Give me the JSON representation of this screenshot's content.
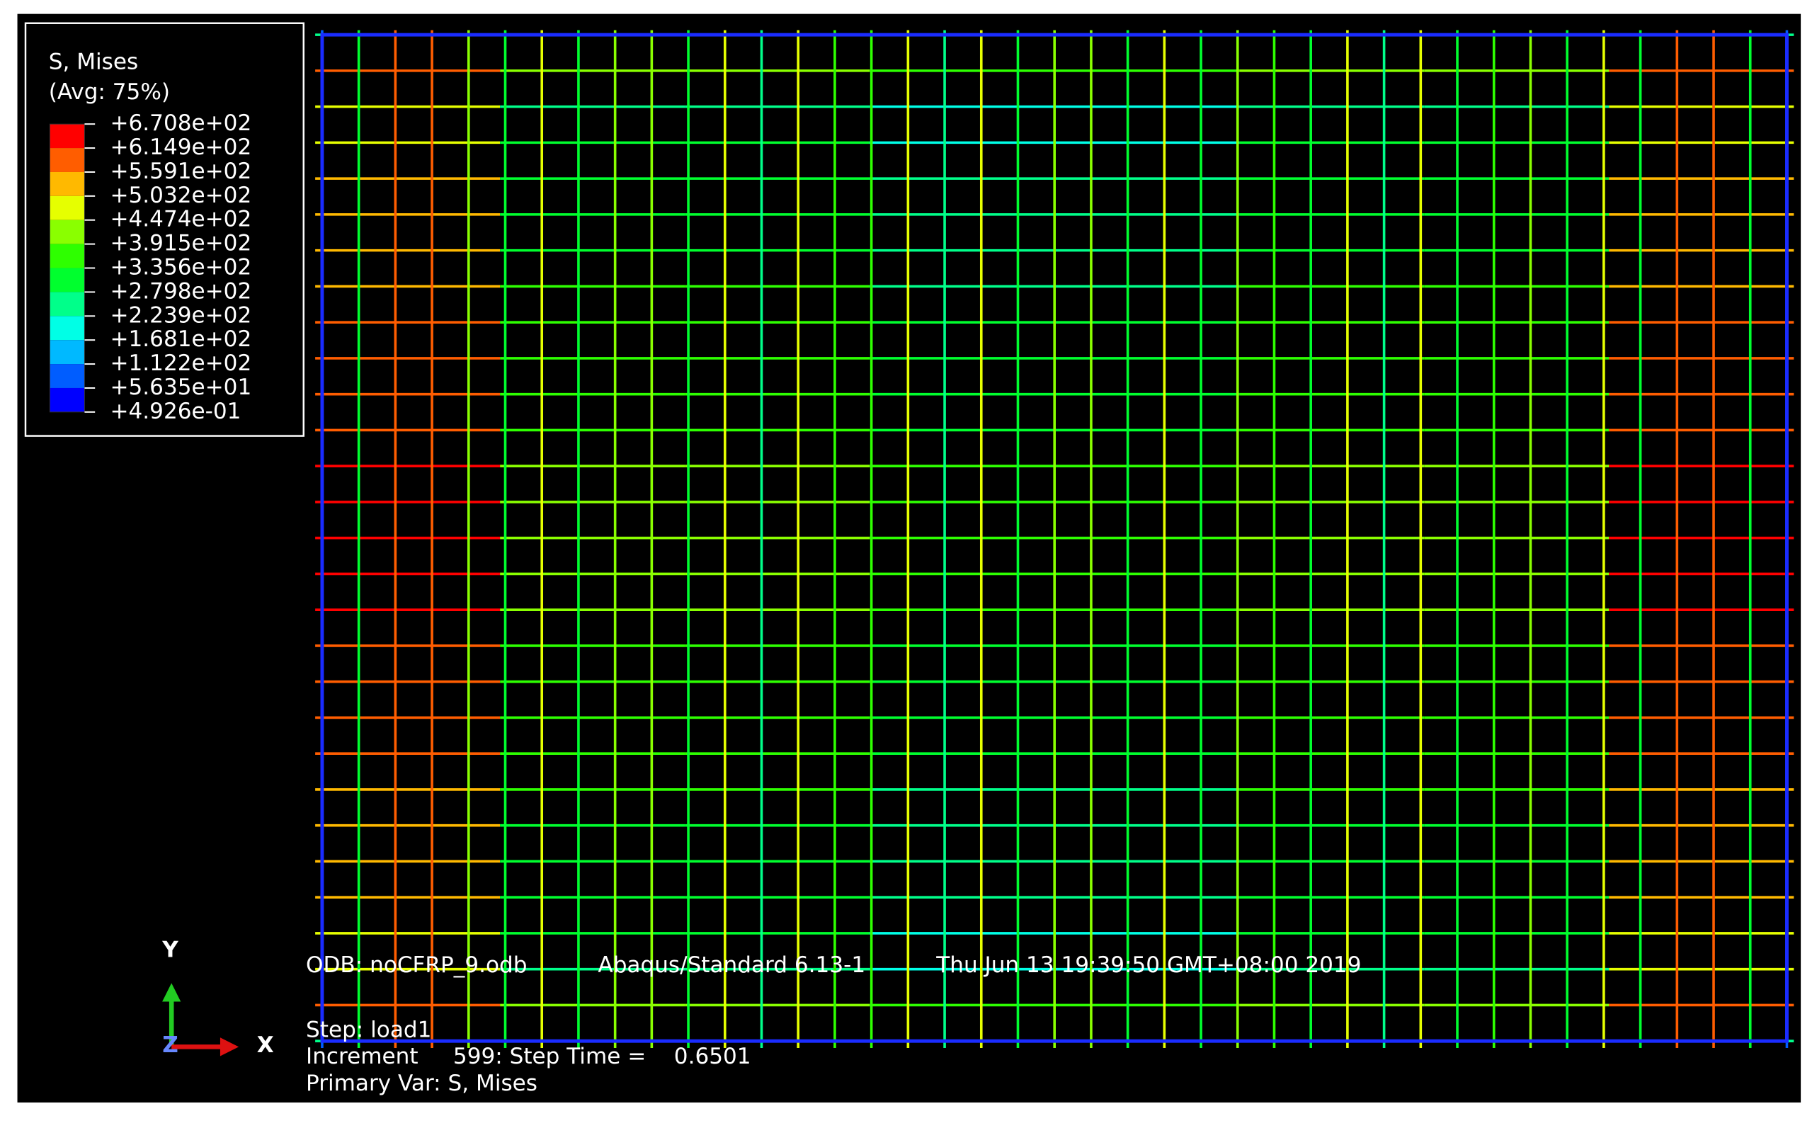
{
  "legend": {
    "title": "S, Mises",
    "subtitle": "(Avg: 75%)",
    "levels": [
      "+6.708e+02",
      "+6.149e+02",
      "+5.591e+02",
      "+5.032e+02",
      "+4.474e+02",
      "+3.915e+02",
      "+3.356e+02",
      "+2.798e+02",
      "+2.239e+02",
      "+1.681e+02",
      "+1.122e+02",
      "+5.635e+01",
      "+4.926e-01"
    ],
    "colors": [
      "#ff0000",
      "#ff5d00",
      "#ffb900",
      "#e6ff00",
      "#8aff00",
      "#2eff00",
      "#00ff2e",
      "#00ff8a",
      "#00ffe6",
      "#00b9ff",
      "#005dff",
      "#0000ff"
    ]
  },
  "info": {
    "odb": "ODB: noCFRP_9.odb",
    "solver": "Abaqus/Standard 6.13-1",
    "date": "Thu Jun 13 19:39:50 GMT+08:00 2019",
    "step": "Step: load1",
    "increment": "Increment     599: Step Time =    0.6501",
    "primary_var": "Primary Var: S, Mises"
  },
  "triad": {
    "y": "Y",
    "z": "Z",
    "x": "X"
  }
}
